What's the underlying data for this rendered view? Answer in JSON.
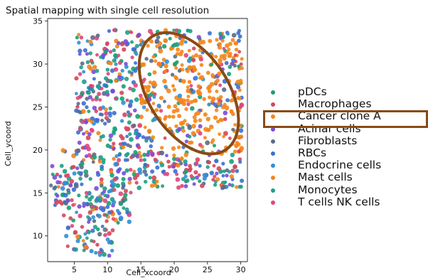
{
  "chart_data": {
    "type": "scatter",
    "title": "Spatial mapping with single cell resolution",
    "xlabel": "Cell_xcoord",
    "ylabel": "Cell_ycoord",
    "xlim": [
      1,
      31
    ],
    "ylim": [
      7,
      35.3
    ],
    "xticks": [
      5,
      10,
      15,
      20,
      25,
      30
    ],
    "yticks": [
      10,
      15,
      20,
      25,
      30,
      35
    ],
    "grid": false,
    "legend_position": "right",
    "series": [
      {
        "name": "pDCs",
        "color": "#1a9e77"
      },
      {
        "name": "Macrophages",
        "color": "#d6455b"
      },
      {
        "name": "Cancer clone A",
        "color": "#f58518"
      },
      {
        "name": "Acinar cells",
        "color": "#7b4ad8"
      },
      {
        "name": "Fibroblasts",
        "color": "#5b6b86"
      },
      {
        "name": "RBCs",
        "color": "#3b6fd0"
      },
      {
        "name": "Endocrine cells",
        "color": "#2f8fd6"
      },
      {
        "name": "Mast cells",
        "color": "#f0851f"
      },
      {
        "name": "Monocytes",
        "color": "#1f9e8a"
      },
      {
        "name": "T cells  NK cells",
        "color": "#e0457a"
      }
    ],
    "tissue_regions": [
      {
        "x": [
          3.8,
          10.8
        ],
        "y": [
          7.5,
          11.3
        ]
      },
      {
        "x": [
          1.5,
          4.8
        ],
        "y": [
          13.0,
          18.2
        ]
      },
      {
        "x": [
          3.2,
          13.8
        ],
        "y": [
          11.5,
          20.5
        ]
      },
      {
        "x": [
          5.3,
          13.8
        ],
        "y": [
          20.5,
          33.5
        ]
      },
      {
        "x": [
          9.8,
          30.2
        ],
        "y": [
          15.5,
          34.0
        ]
      }
    ],
    "cancer_clone_region": {
      "x": [
        15.0,
        30.5
      ],
      "y": [
        19.0,
        33.0
      ]
    },
    "annotations": [
      {
        "type": "ellipse",
        "color": "#8a4a16",
        "center": [
          22.2,
          26.6
        ],
        "semi_axes_px": [
          56,
          95
        ],
        "rotation_deg": -33
      },
      {
        "type": "box",
        "color": "#8a4a16",
        "target": "Cancer clone A"
      }
    ]
  }
}
